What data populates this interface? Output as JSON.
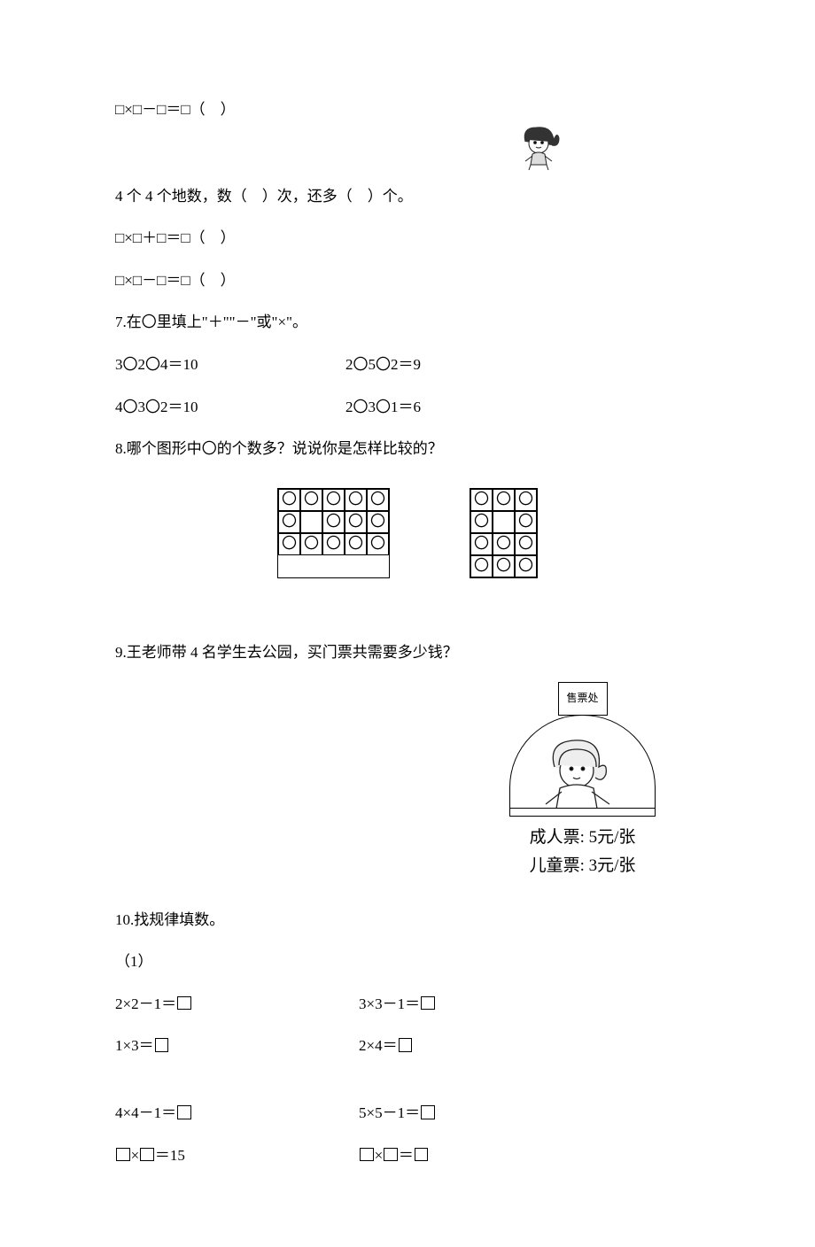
{
  "eq1": "□×□－□＝□（　）",
  "q6b_text": "4 个 4 个地数，数（　）次，还多（　）个。",
  "eq2": "□×□＋□＝□（　）",
  "eq3": "□×□－□＝□（　）",
  "q7_title": "7.在〇里填上\"＋\"\"－\"或\"×\"。",
  "q7_r1c1": "3〇2〇4＝10",
  "q7_r1c2": "2〇5〇2＝9",
  "q7_r2c1": "4〇3〇2＝10",
  "q7_r2c2": "2〇3〇1＝6",
  "q8_title": "8.哪个图形中〇的个数多？说说你是怎样比较的？",
  "grids": {
    "left": {
      "cols": 5,
      "rows": [
        [
          1,
          1,
          1,
          1,
          1
        ],
        [
          1,
          0,
          1,
          1,
          1
        ],
        [
          1,
          1,
          1,
          1,
          1
        ]
      ]
    },
    "right": {
      "cols": 3,
      "rows": [
        [
          1,
          1,
          1
        ],
        [
          1,
          0,
          1
        ],
        [
          1,
          1,
          1
        ],
        [
          1,
          1,
          1
        ]
      ]
    },
    "circle_glyph": "〇"
  },
  "q9_title": "9.王老师带 4 名学生去公园，买门票共需要多少钱？",
  "booth": {
    "sign": "售票处",
    "price_adult": "成人票: 5元/张",
    "price_child": "儿童票: 3元/张"
  },
  "q10_title": "10.找规律填数。",
  "q10_sub1": "（1）",
  "q10_r1c1": "2×2－1＝",
  "q10_r1c2": "3×3－1＝",
  "q10_r2c1": "1×3＝",
  "q10_r2c2": "2×4＝",
  "q10_r3c1": "4×4－1＝",
  "q10_r3c2": "5×5－1＝",
  "q10_r4c1_a": "×",
  "q10_r4c1_b": "＝15",
  "q10_r4c2_a": "×",
  "q10_r4c2_b": "＝",
  "colors": {
    "text": "#000000",
    "background": "#ffffff"
  }
}
